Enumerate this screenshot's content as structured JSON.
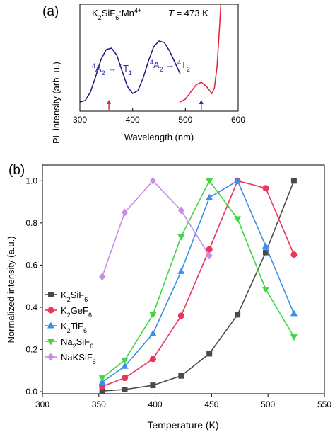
{
  "chart_data": [
    {
      "panel_label": "(a)",
      "type": "line",
      "title": "",
      "xlabel": "Wavelength (nm)",
      "ylabel": "PL intensity (arb. u.)",
      "xlim": [
        300,
        600
      ],
      "xticks": [
        "300",
        "400",
        "500",
        "600"
      ],
      "grid": false,
      "annotation_sample": {
        "base": "K",
        "sub1": "2",
        "mid": "SiF",
        "sub2": "6",
        "tail": ":Mn",
        "sup": "4+"
      },
      "annotation_temperature": {
        "var": "T",
        "eq": " = 473 K"
      },
      "transition_labels": [
        {
          "from_sup": "4",
          "from_base": "A",
          "from_sub": "2",
          "to_sup": "4",
          "to_base": "T",
          "to_sub": "1"
        },
        {
          "from_sup": "4",
          "from_base": "A",
          "from_sub": "2",
          "to_sup": "4",
          "to_base": "T",
          "to_sub": "2"
        }
      ],
      "excitation_marker_nm": 355,
      "emission_marker_nm": 530,
      "colors": {
        "excitation": "#1a1a7a",
        "emission": "#e0223a",
        "label": "#2a2aa0"
      },
      "series": [
        {
          "role": "excitation",
          "x": [
            300,
            310,
            320,
            330,
            340,
            350,
            360,
            370,
            380,
            390,
            400,
            410,
            420,
            430,
            440,
            450,
            460,
            470,
            480,
            490
          ],
          "y": [
            0.0,
            0.01,
            0.07,
            0.18,
            0.3,
            0.37,
            0.38,
            0.33,
            0.22,
            0.11,
            0.06,
            0.08,
            0.17,
            0.29,
            0.39,
            0.43,
            0.42,
            0.36,
            0.28,
            0.2
          ]
        },
        {
          "role": "emission",
          "x": [
            490,
            500,
            510,
            520,
            530,
            540,
            550,
            555,
            560,
            565,
            570,
            575,
            580
          ],
          "y": [
            0.0,
            0.02,
            0.07,
            0.12,
            0.14,
            0.11,
            0.06,
            0.1,
            0.25,
            0.55,
            0.9,
            1.3,
            1.7
          ]
        }
      ]
    },
    {
      "panel_label": "(b)",
      "type": "line",
      "title": "",
      "xlabel": "Temperature (K)",
      "ylabel": "Normalized intensity (a.u.)",
      "xlim": [
        300,
        550
      ],
      "ylim": [
        0,
        1.0
      ],
      "xticks": [
        "300",
        "350",
        "400",
        "450",
        "500",
        "550"
      ],
      "yticks": [
        "0.0",
        "0.2",
        "0.4",
        "0.6",
        "0.8",
        "1.0"
      ],
      "grid": false,
      "legend_position": "bottom-left",
      "series": [
        {
          "name_parts": [
            [
              "K",
              ""
            ],
            [
              "2",
              "sub"
            ],
            [
              "SiF",
              ""
            ],
            [
              "6",
              "sub"
            ]
          ],
          "marker": "square",
          "color": "#4a4a4a",
          "x": [
            353,
            373,
            398,
            423,
            448,
            473,
            498,
            523
          ],
          "y": [
            0.003,
            0.01,
            0.03,
            0.075,
            0.18,
            0.365,
            0.66,
            1.0
          ]
        },
        {
          "name_parts": [
            [
              "K",
              ""
            ],
            [
              "2",
              "sub"
            ],
            [
              "GeF",
              ""
            ],
            [
              "6",
              "sub"
            ]
          ],
          "marker": "circle",
          "color": "#e8365c",
          "x": [
            353,
            373,
            398,
            423,
            448,
            473,
            498,
            523
          ],
          "y": [
            0.025,
            0.065,
            0.155,
            0.36,
            0.675,
            1.0,
            0.965,
            0.65
          ]
        },
        {
          "name_parts": [
            [
              "K",
              ""
            ],
            [
              "2",
              "sub"
            ],
            [
              "TiF",
              ""
            ],
            [
              "6",
              "sub"
            ]
          ],
          "marker": "triangle-up",
          "color": "#3a8fe8",
          "x": [
            353,
            373,
            398,
            423,
            448,
            473,
            498,
            523
          ],
          "y": [
            0.045,
            0.12,
            0.275,
            0.57,
            0.92,
            1.0,
            0.69,
            0.37
          ]
        },
        {
          "name_parts": [
            [
              "Na",
              ""
            ],
            [
              "2",
              "sub"
            ],
            [
              "SiF",
              ""
            ],
            [
              "6",
              "sub"
            ]
          ],
          "marker": "triangle-down",
          "color": "#3ed83e",
          "x": [
            353,
            373,
            398,
            423,
            448,
            473,
            498,
            523
          ],
          "y": [
            0.065,
            0.15,
            0.365,
            0.735,
            1.0,
            0.82,
            0.485,
            0.26
          ]
        },
        {
          "name_parts": [
            [
              "NaKSiF",
              ""
            ],
            [
              "6",
              "sub"
            ]
          ],
          "marker": "diamond",
          "color": "#c88be8",
          "x": [
            353,
            373,
            398,
            423,
            448
          ],
          "y": [
            0.545,
            0.85,
            1.0,
            0.86,
            0.645
          ]
        }
      ]
    }
  ]
}
